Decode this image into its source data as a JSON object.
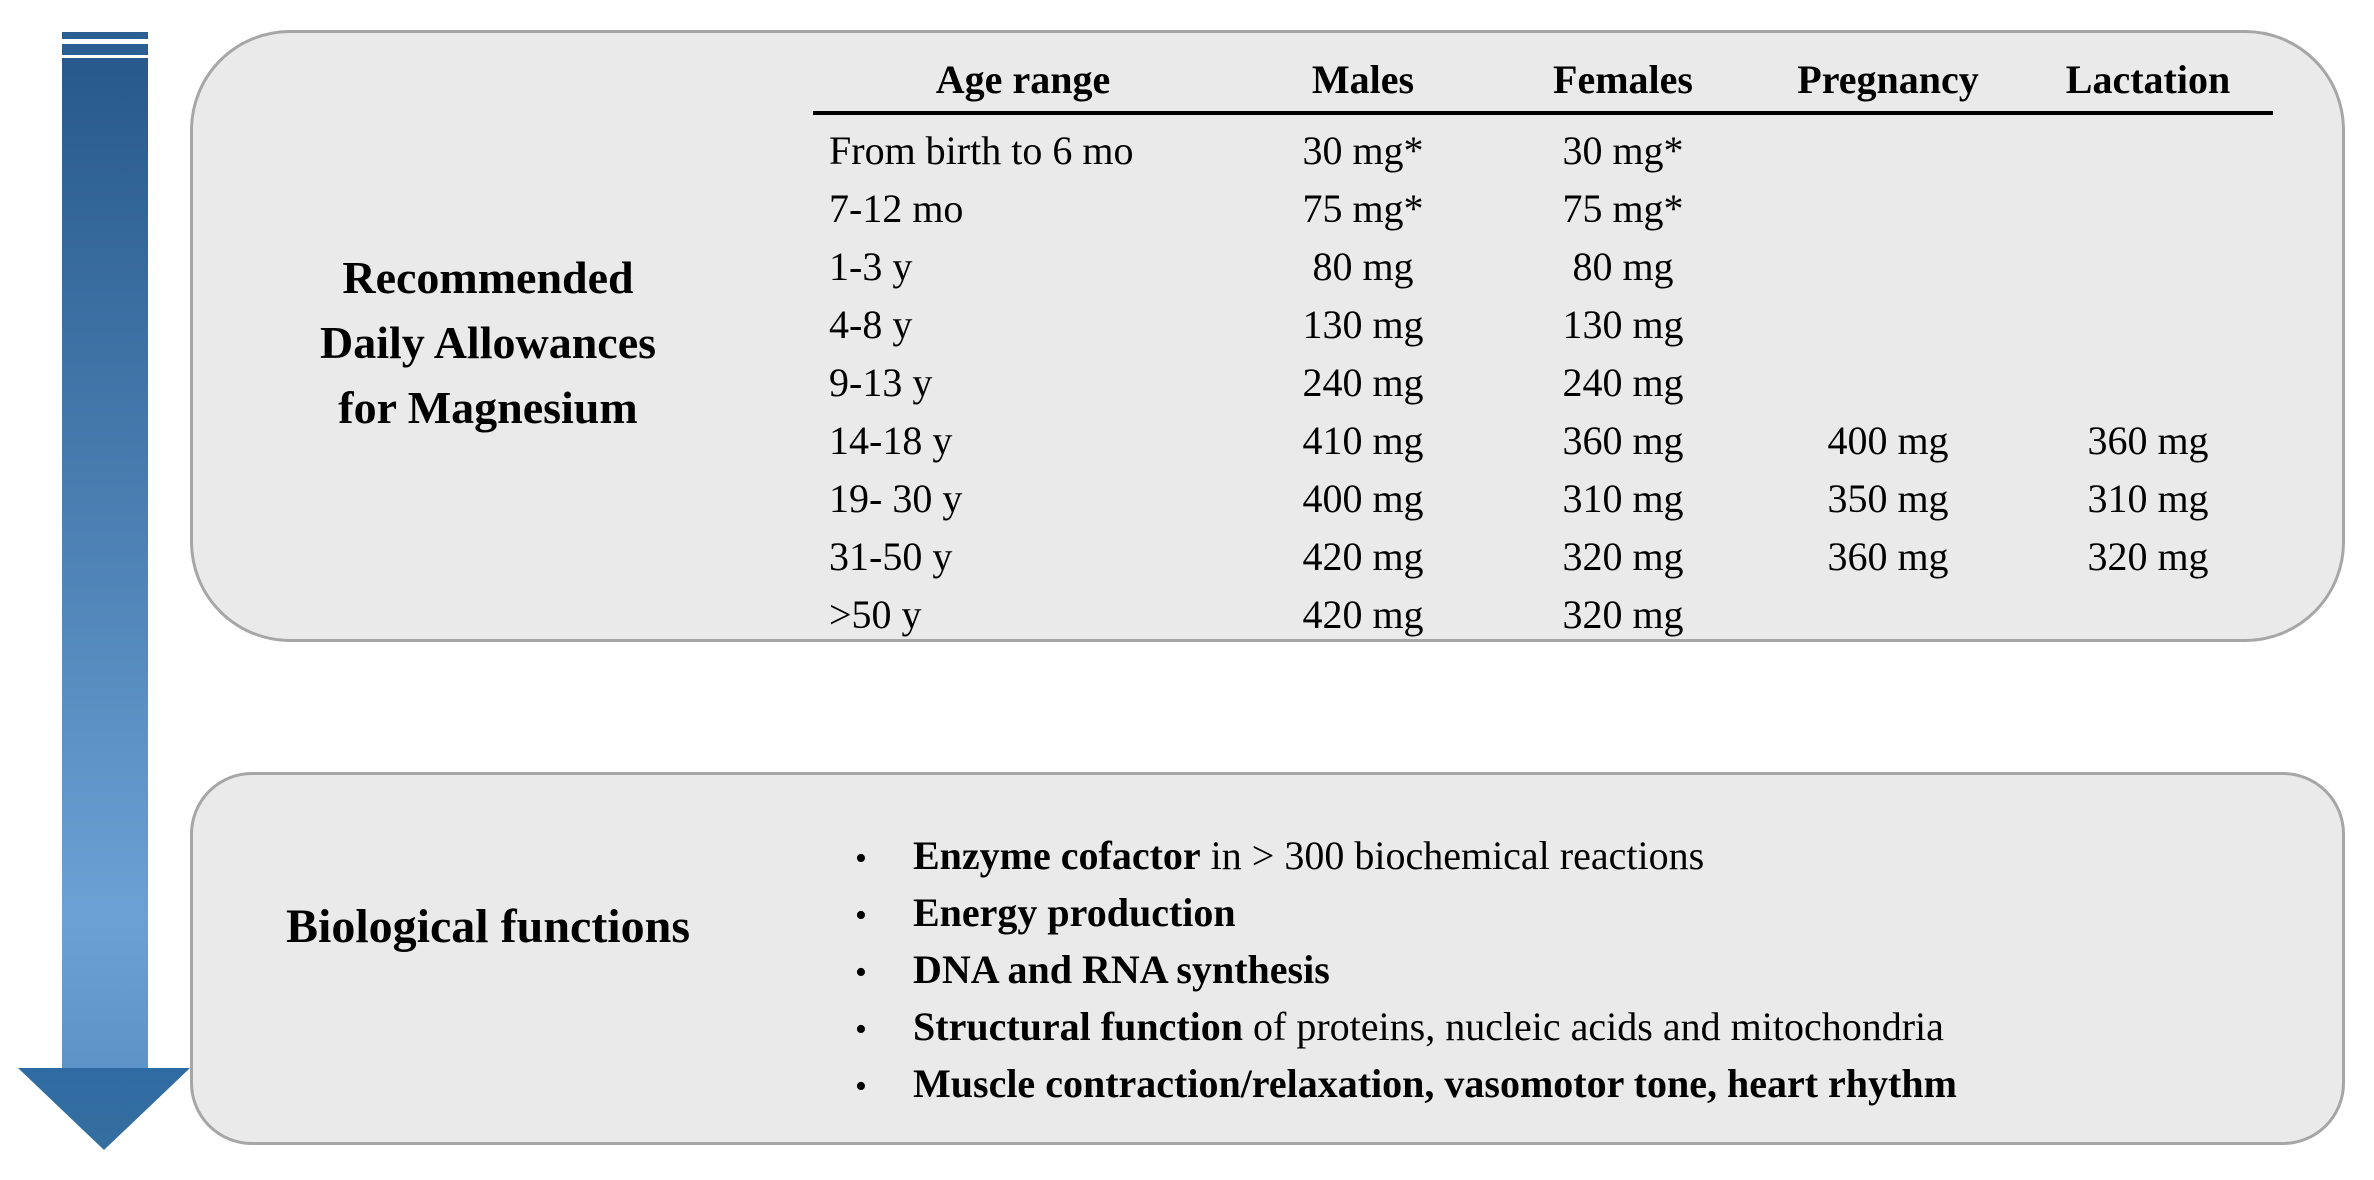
{
  "figure": {
    "colors": {
      "box_fill": "#eaeaea",
      "box_border": "#a6a6a6",
      "text": "#000000",
      "background": "#ffffff",
      "arrow_bar": "#2b5f92",
      "arrow_shaft_top": "#27598c",
      "arrow_shaft_bottom": "#6ba1d4",
      "arrow_head_top": "#2f6ba3",
      "arrow_head_bottom": "#366f9f"
    },
    "arrow": {
      "icon": "down-arrow-icon",
      "direction": "down"
    },
    "rda_box": {
      "label_lines": [
        "Recommended",
        "Daily Allowances",
        "for Magnesium"
      ],
      "table": {
        "headers": [
          "Age range",
          "Males",
          "Females",
          "Pregnancy",
          "Lactation"
        ],
        "rows": [
          [
            "From birth to 6 mo",
            "30 mg*",
            "30 mg*",
            "",
            ""
          ],
          [
            "7-12 mo",
            "75 mg*",
            "75 mg*",
            "",
            ""
          ],
          [
            "1-3 y",
            "80 mg",
            "80 mg",
            "",
            ""
          ],
          [
            "4-8 y",
            "130 mg",
            "130 mg",
            "",
            ""
          ],
          [
            "9-13 y",
            "240 mg",
            "240 mg",
            "",
            ""
          ],
          [
            "14-18 y",
            "410 mg",
            "360 mg",
            "400 mg",
            "360 mg"
          ],
          [
            "19- 30 y",
            "400 mg",
            "310 mg",
            "350 mg",
            "310 mg"
          ],
          [
            "31-50 y",
            "420 mg",
            "320 mg",
            "360 mg",
            "320 mg"
          ],
          [
            ">50 y",
            "420 mg",
            "320 mg",
            "",
            ""
          ]
        ]
      }
    },
    "functions_box": {
      "label": "Biological functions",
      "bullet_glyph": "•",
      "bullets": [
        {
          "bold": "Enzyme cofactor",
          "rest": " in > 300 biochemical reactions"
        },
        {
          "bold": "Energy production",
          "rest": ""
        },
        {
          "bold": "DNA and RNA synthesis",
          "rest": ""
        },
        {
          "bold": "Structural function",
          "rest": " of proteins, nucleic acids and mitochondria"
        },
        {
          "bold": "Muscle contraction/relaxation, vasomotor tone, heart rhythm",
          "rest": ""
        }
      ]
    }
  }
}
